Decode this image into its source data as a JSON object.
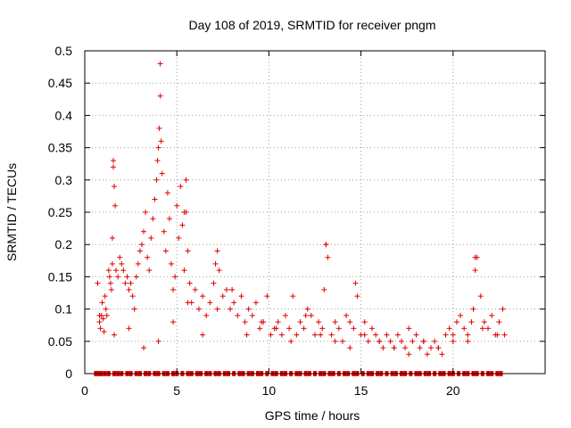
{
  "chart_data": {
    "type": "scatter",
    "title": "Day 108 of 2019, SRMTID for receiver pngm",
    "xlabel": "GPS time / hours",
    "ylabel": "SRMTID / TECUs",
    "xlim": [
      0,
      25
    ],
    "ylim": [
      0,
      0.5
    ],
    "xticks": [
      0,
      5,
      10,
      15,
      20
    ],
    "xtick_labels": [
      "0",
      "5",
      "10",
      "15",
      "20"
    ],
    "yticks": [
      0,
      0.05,
      0.1,
      0.15,
      0.2,
      0.25,
      0.3,
      0.35,
      0.4,
      0.45,
      0.5
    ],
    "ytick_labels": [
      "0",
      "0.05",
      "0.1",
      "0.15",
      "0.2",
      "0.25",
      "0.3",
      "0.35",
      "0.4",
      "0.45",
      "0.5"
    ],
    "grid": true,
    "marker": "plus",
    "color": "#e00000",
    "series": [
      {
        "name": "SRMTID",
        "x": [
          0.7,
          0.8,
          0.85,
          0.9,
          0.95,
          1.0,
          1.05,
          1.1,
          1.15,
          1.2,
          1.3,
          1.35,
          1.4,
          1.45,
          1.5,
          1.55,
          1.6,
          1.65,
          1.7,
          1.8,
          1.9,
          2.0,
          2.1,
          2.2,
          2.3,
          2.4,
          2.5,
          2.6,
          2.7,
          2.8,
          2.9,
          3.0,
          3.1,
          3.2,
          3.3,
          3.4,
          3.5,
          3.6,
          3.7,
          3.8,
          3.9,
          4.0,
          4.05,
          4.1,
          4.15,
          4.2,
          4.3,
          4.4,
          4.5,
          4.6,
          4.7,
          4.8,
          4.9,
          5.0,
          5.1,
          5.2,
          5.3,
          5.4,
          5.5,
          5.6,
          5.7,
          5.8,
          6.0,
          6.2,
          6.4,
          6.6,
          6.8,
          7.0,
          7.1,
          7.2,
          7.3,
          7.5,
          7.7,
          7.9,
          8.1,
          8.3,
          8.5,
          8.7,
          8.9,
          9.1,
          9.3,
          9.5,
          9.7,
          9.9,
          10.1,
          10.3,
          10.5,
          10.7,
          10.9,
          11.1,
          11.3,
          11.5,
          11.7,
          11.9,
          12.1,
          12.3,
          12.5,
          12.7,
          12.9,
          13.0,
          13.1,
          13.2,
          13.4,
          13.6,
          13.8,
          14.0,
          14.2,
          14.4,
          14.6,
          14.7,
          14.8,
          15.0,
          15.2,
          15.4,
          15.6,
          15.8,
          16.0,
          16.2,
          16.4,
          16.6,
          16.8,
          17.0,
          17.2,
          17.4,
          17.6,
          17.8,
          18.0,
          18.2,
          18.4,
          18.6,
          18.8,
          19.0,
          19.2,
          19.4,
          19.6,
          19.8,
          20.0,
          20.2,
          20.4,
          20.6,
          20.8,
          21.0,
          21.1,
          21.2,
          21.3,
          21.5,
          21.7,
          21.9,
          22.1,
          22.3,
          22.5,
          22.7,
          22.8,
          0.8,
          1.6,
          2.4,
          3.2,
          4.0,
          4.8,
          5.6,
          6.4,
          7.2,
          8.0,
          8.8,
          9.6,
          10.4,
          11.2,
          12.0,
          12.8,
          13.6,
          14.4,
          15.2,
          16.0,
          16.8,
          17.6,
          18.4,
          19.2,
          20.0,
          20.8,
          21.6,
          22.4,
          4.1,
          3.95,
          5.4,
          5.5,
          1.55,
          1.5,
          13.1,
          21.2
        ],
        "y": [
          0.14,
          0.08,
          0.07,
          0.09,
          0.11,
          0.085,
          0.065,
          0.12,
          0.1,
          0.09,
          0.16,
          0.15,
          0.14,
          0.13,
          0.17,
          0.32,
          0.29,
          0.26,
          0.16,
          0.15,
          0.18,
          0.17,
          0.16,
          0.14,
          0.15,
          0.13,
          0.14,
          0.12,
          0.1,
          0.15,
          0.17,
          0.19,
          0.2,
          0.22,
          0.25,
          0.18,
          0.16,
          0.21,
          0.24,
          0.27,
          0.3,
          0.35,
          0.38,
          0.43,
          0.36,
          0.31,
          0.22,
          0.19,
          0.28,
          0.24,
          0.17,
          0.13,
          0.15,
          0.26,
          0.21,
          0.29,
          0.23,
          0.16,
          0.25,
          0.19,
          0.14,
          0.11,
          0.13,
          0.1,
          0.12,
          0.09,
          0.11,
          0.14,
          0.17,
          0.19,
          0.16,
          0.12,
          0.13,
          0.1,
          0.11,
          0.09,
          0.12,
          0.08,
          0.1,
          0.09,
          0.11,
          0.07,
          0.08,
          0.12,
          0.06,
          0.07,
          0.08,
          0.06,
          0.09,
          0.07,
          0.12,
          0.06,
          0.08,
          0.07,
          0.1,
          0.09,
          0.06,
          0.08,
          0.07,
          0.13,
          0.2,
          0.18,
          0.06,
          0.08,
          0.07,
          0.05,
          0.09,
          0.08,
          0.07,
          0.14,
          0.12,
          0.06,
          0.08,
          0.05,
          0.07,
          0.06,
          0.05,
          0.04,
          0.06,
          0.05,
          0.04,
          0.06,
          0.05,
          0.04,
          0.07,
          0.05,
          0.06,
          0.04,
          0.05,
          0.03,
          0.04,
          0.05,
          0.04,
          0.03,
          0.06,
          0.07,
          0.05,
          0.08,
          0.09,
          0.07,
          0.06,
          0.08,
          0.1,
          0.16,
          0.18,
          0.12,
          0.08,
          0.07,
          0.09,
          0.06,
          0.08,
          0.1,
          0.06,
          0.09,
          0.06,
          0.07,
          0.04,
          0.05,
          0.08,
          0.11,
          0.06,
          0.1,
          0.13,
          0.06,
          0.08,
          0.07,
          0.05,
          0.09,
          0.06,
          0.05,
          0.04,
          0.06,
          0.05,
          0.04,
          0.03,
          0.05,
          0.04,
          0.06,
          0.05,
          0.07,
          0.06,
          0.48,
          0.33,
          0.25,
          0.3,
          0.33,
          0.21,
          0.2,
          0.18
        ],
        "zero_x": [
          0.6,
          0.75,
          0.9,
          1.1,
          1.3,
          1.6,
          1.8,
          2.0,
          2.3,
          2.5,
          2.8,
          3.0,
          3.3,
          3.5,
          3.8,
          4.0,
          4.3,
          4.5,
          4.8,
          5.0,
          5.3,
          5.6,
          5.8,
          6.1,
          6.3,
          6.6,
          6.8,
          7.1,
          7.3,
          7.6,
          7.8,
          8.1,
          8.4,
          8.6,
          8.9,
          9.1,
          9.4,
          9.6,
          9.9,
          10.2,
          10.4,
          10.7,
          10.9,
          11.2,
          11.5,
          11.7,
          12.0,
          12.2,
          12.5,
          12.8,
          13.0,
          13.3,
          13.5,
          13.8,
          14.1,
          14.3,
          14.6,
          14.8,
          15.1,
          15.4,
          15.6,
          15.9,
          16.1,
          16.4,
          16.7,
          16.9,
          17.2,
          17.4,
          17.7,
          18.0,
          18.2,
          18.5,
          18.7,
          19.0,
          19.3,
          19.5,
          19.8,
          20.0,
          20.3,
          20.6,
          20.8,
          21.1,
          21.3,
          21.6,
          21.9,
          22.1,
          22.4,
          22.6
        ],
        "zero_y": 0
      }
    ]
  }
}
